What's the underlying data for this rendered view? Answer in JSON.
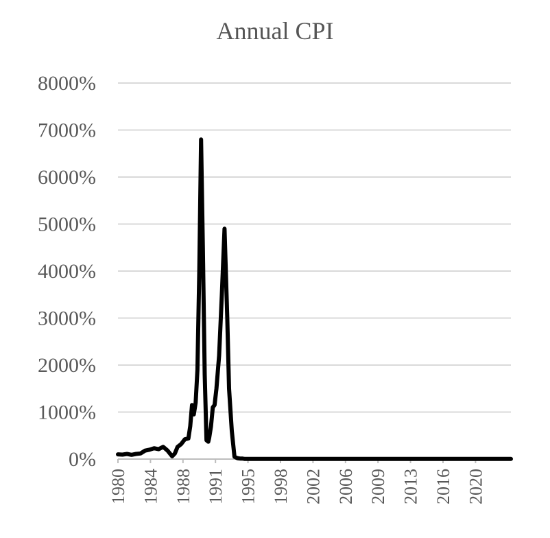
{
  "chart_data": {
    "type": "line",
    "title": "Annual CPI",
    "xlabel": "",
    "ylabel": "",
    "ylim": [
      0,
      8000
    ],
    "y_ticks": [
      "0%",
      "1000%",
      "2000%",
      "3000%",
      "4000%",
      "5000%",
      "6000%",
      "7000%",
      "8000%"
    ],
    "x_ticks": [
      "1980",
      "1984",
      "1988",
      "1991",
      "1995",
      "1998",
      "2002",
      "2006",
      "2009",
      "2013",
      "2016",
      "2020"
    ],
    "grid": true,
    "legend": "none",
    "line_color": "#000000",
    "series": [
      {
        "x": [
          1980,
          1980.5,
          1981,
          1981.5,
          1982,
          1982.5,
          1983,
          1983.5,
          1984,
          1984.5,
          1985,
          1985.5,
          1986,
          1986.3,
          1986.6,
          1987,
          1987.4,
          1987.8,
          1988,
          1988.2,
          1988.4,
          1988.6,
          1988.8,
          1989,
          1989.2,
          1989.4,
          1989.6,
          1989.8,
          1990,
          1990.1,
          1990.3,
          1990.5,
          1990.7,
          1990.9,
          1991.2,
          1991.5,
          1991.8,
          1992.1,
          1992.3,
          1992.6,
          1992.9,
          1993.2,
          1993.4,
          1993.6,
          1993.8,
          1994,
          1994.2,
          1994.4,
          1994.6,
          1994.8,
          1995,
          1995.5,
          1996,
          1997,
          1998,
          2000,
          2002,
          2004,
          2006,
          2008,
          2010,
          2012,
          2014,
          2016,
          2018,
          2020,
          2022,
          2023.5
        ],
        "y": [
          100,
          95,
          110,
          90,
          110,
          120,
          180,
          200,
          230,
          210,
          260,
          180,
          60,
          120,
          260,
          320,
          420,
          440,
          700,
          1150,
          950,
          1200,
          1900,
          4000,
          6800,
          4500,
          1800,
          400,
          370,
          450,
          700,
          1100,
          1150,
          1500,
          2200,
          3500,
          4900,
          3000,
          1500,
          600,
          50,
          20,
          15,
          10,
          10,
          5,
          5,
          5,
          5,
          5,
          5,
          5,
          5,
          5,
          5,
          5,
          5,
          5,
          5,
          5,
          5,
          5,
          5,
          5,
          5,
          5,
          5,
          5
        ]
      }
    ]
  }
}
